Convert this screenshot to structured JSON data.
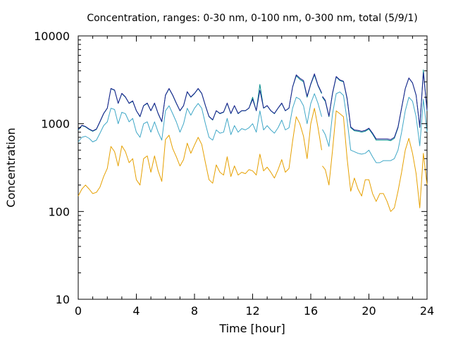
{
  "chart_data": {
    "type": "line",
    "title": "Concentration, ranges: 0-30 nm, 0-100 nm, 0-300 nm, total (5/9/1)",
    "xlabel": "Time [hour]",
    "ylabel": "Concentration",
    "xlim": [
      0,
      24
    ],
    "ylim": [
      10,
      10000
    ],
    "yscale": "log",
    "grid": false,
    "legend": "none",
    "x_ticks": [
      0,
      4,
      8,
      12,
      16,
      20,
      24
    ],
    "x_tick_labels": [
      "0",
      "4",
      "8",
      "12",
      "16",
      "20",
      "24"
    ],
    "y_ticks": [
      10,
      100,
      1000,
      10000
    ],
    "y_tick_labels": [
      "10",
      "100",
      "1000",
      "10000"
    ],
    "series": [
      {
        "color": "#e6a000",
        "x": [
          0,
          0.25,
          0.5,
          0.75,
          1,
          1.25,
          1.5,
          1.75,
          2,
          2.25,
          2.5,
          2.75,
          3,
          3.25,
          3.5,
          3.75,
          4,
          4.25,
          4.5,
          4.75,
          5,
          5.25,
          5.5,
          5.75,
          6,
          6.25,
          6.5,
          6.75,
          7,
          7.25,
          7.5,
          7.75,
          8,
          8.25,
          8.5,
          8.75,
          9,
          9.25,
          9.5,
          9.75,
          10,
          10.25,
          10.5,
          10.75,
          11,
          11.25,
          11.5,
          11.75,
          12,
          12.25,
          12.5,
          12.75,
          13,
          13.25,
          13.5,
          13.75,
          14,
          14.25,
          14.5,
          14.75,
          15,
          15.25,
          15.5,
          15.75,
          16,
          16.25,
          16.5,
          16.75,
          null,
          16.8,
          17,
          17.25,
          17.5,
          17.75,
          18,
          18.25,
          18.5,
          18.75,
          19,
          19.25,
          19.5,
          19.75,
          20,
          20.25,
          20.5,
          20.75,
          21,
          21.25,
          21.5,
          21.75,
          22,
          22.25,
          22.5,
          22.75,
          23,
          23.25,
          23.5,
          23.75,
          24
        ],
        "y": [
          150,
          180,
          200,
          180,
          160,
          165,
          190,
          250,
          310,
          550,
          480,
          330,
          560,
          480,
          360,
          400,
          230,
          200,
          400,
          430,
          280,
          430,
          290,
          220,
          660,
          740,
          520,
          420,
          330,
          390,
          600,
          460,
          570,
          700,
          580,
          360,
          230,
          210,
          340,
          280,
          260,
          420,
          250,
          330,
          260,
          280,
          270,
          300,
          290,
          260,
          450,
          290,
          320,
          280,
          240,
          300,
          390,
          280,
          310,
          630,
          1200,
          1000,
          720,
          400,
          1000,
          1500,
          900,
          500,
          null,
          330,
          300,
          200,
          500,
          1400,
          1300,
          1200,
          400,
          170,
          240,
          180,
          150,
          230,
          230,
          160,
          130,
          160,
          160,
          130,
          100,
          110,
          170,
          280,
          500,
          680,
          460,
          270,
          110,
          460,
          200
        ]
      },
      {
        "color": "#3fa7c7",
        "x": [
          0,
          0.25,
          0.5,
          0.75,
          1,
          1.25,
          1.5,
          1.75,
          2,
          2.25,
          2.5,
          2.75,
          3,
          3.25,
          3.5,
          3.75,
          4,
          4.25,
          4.5,
          4.75,
          5,
          5.25,
          5.5,
          5.75,
          6,
          6.25,
          6.5,
          6.75,
          7,
          7.25,
          7.5,
          7.75,
          8,
          8.25,
          8.5,
          8.75,
          9,
          9.25,
          9.5,
          9.75,
          10,
          10.25,
          10.5,
          10.75,
          11,
          11.25,
          11.5,
          11.75,
          12,
          12.25,
          12.5,
          12.75,
          13,
          13.25,
          13.5,
          13.75,
          14,
          14.25,
          14.5,
          14.75,
          15,
          15.25,
          15.5,
          15.75,
          16,
          16.25,
          16.5,
          16.75,
          null,
          16.8,
          17,
          17.25,
          17.5,
          17.75,
          18,
          18.25,
          18.5,
          18.75,
          19,
          19.25,
          19.5,
          19.75,
          20,
          20.25,
          20.5,
          20.75,
          21,
          21.25,
          21.5,
          21.75,
          22,
          22.25,
          22.5,
          22.75,
          23,
          23.25,
          23.5,
          23.75,
          24
        ],
        "y": [
          620,
          700,
          720,
          680,
          620,
          650,
          780,
          950,
          1050,
          1500,
          1450,
          1000,
          1350,
          1300,
          1050,
          1150,
          800,
          700,
          1000,
          1050,
          800,
          1050,
          800,
          650,
          1400,
          1600,
          1300,
          1050,
          800,
          1000,
          1500,
          1250,
          1500,
          1700,
          1500,
          1000,
          700,
          650,
          850,
          780,
          800,
          1150,
          750,
          950,
          800,
          880,
          850,
          900,
          1000,
          800,
          1400,
          850,
          950,
          850,
          780,
          900,
          1100,
          850,
          900,
          1500,
          2000,
          1900,
          1600,
          1000,
          1700,
          2200,
          1700,
          1200,
          null,
          860,
          750,
          550,
          1300,
          2200,
          2300,
          2100,
          1100,
          500,
          480,
          460,
          450,
          460,
          500,
          420,
          360,
          360,
          380,
          380,
          380,
          400,
          500,
          800,
          1400,
          2000,
          1800,
          1200,
          560,
          1900,
          800
        ]
      },
      {
        "color": "#008b8b",
        "x": [
          0,
          0.25,
          0.5,
          0.75,
          1,
          1.25,
          1.5,
          1.75,
          2,
          2.25,
          2.5,
          2.75,
          3,
          3.25,
          3.5,
          3.75,
          4,
          4.25,
          4.5,
          4.75,
          5,
          5.25,
          5.5,
          5.75,
          6,
          6.25,
          6.5,
          6.75,
          7,
          7.25,
          7.5,
          7.75,
          8,
          8.25,
          8.5,
          8.75,
          9,
          9.25,
          9.5,
          9.75,
          10,
          10.25,
          10.5,
          10.75,
          11,
          11.25,
          11.5,
          11.75,
          12,
          12.25,
          12.5,
          12.75,
          13,
          13.25,
          13.5,
          13.75,
          14,
          14.25,
          14.5,
          14.75,
          15,
          15.25,
          15.5,
          15.75,
          16,
          16.25,
          16.5,
          16.75,
          null,
          16.8,
          17,
          17.25,
          17.5,
          17.75,
          18,
          18.25,
          18.5,
          18.75,
          19,
          19.25,
          19.5,
          19.75,
          20,
          20.25,
          20.5,
          20.75,
          21,
          21.25,
          21.5,
          21.75,
          22,
          22.25,
          22.5,
          22.75,
          23,
          23.25,
          23.5,
          23.75,
          24
        ],
        "y": [
          850,
          950,
          920,
          860,
          820,
          860,
          1050,
          1300,
          1500,
          2500,
          2400,
          1700,
          2200,
          2000,
          1700,
          1800,
          1400,
          1200,
          1600,
          1700,
          1400,
          1700,
          1300,
          1050,
          2100,
          2500,
          2100,
          1700,
          1400,
          1600,
          2300,
          2000,
          2200,
          2500,
          2200,
          1600,
          1200,
          1100,
          1400,
          1300,
          1350,
          1700,
          1300,
          1600,
          1300,
          1400,
          1400,
          1500,
          2000,
          1400,
          2800,
          1500,
          1600,
          1400,
          1300,
          1500,
          1700,
          1400,
          1500,
          2600,
          3500,
          3200,
          3000,
          2000,
          2800,
          3600,
          2700,
          2200,
          null,
          2000,
          1800,
          1200,
          2200,
          3400,
          3100,
          3000,
          1900,
          900,
          830,
          820,
          800,
          820,
          870,
          760,
          650,
          650,
          650,
          650,
          640,
          680,
          900,
          1500,
          2500,
          3300,
          2900,
          2100,
          900,
          4100,
          1400
        ]
      },
      {
        "color": "#1f1f8f",
        "x": [
          0,
          0.25,
          0.5,
          0.75,
          1,
          1.25,
          1.5,
          1.75,
          2,
          2.25,
          2.5,
          2.75,
          3,
          3.25,
          3.5,
          3.75,
          4,
          4.25,
          4.5,
          4.75,
          5,
          5.25,
          5.5,
          5.75,
          6,
          6.25,
          6.5,
          6.75,
          7,
          7.25,
          7.5,
          7.75,
          8,
          8.25,
          8.5,
          8.75,
          9,
          9.25,
          9.5,
          9.75,
          10,
          10.25,
          10.5,
          10.75,
          11,
          11.25,
          11.5,
          11.75,
          12,
          12.25,
          12.5,
          12.75,
          13,
          13.25,
          13.5,
          13.75,
          14,
          14.25,
          14.5,
          14.75,
          15,
          15.25,
          15.5,
          15.75,
          16,
          16.25,
          16.5,
          16.75,
          null,
          16.8,
          17,
          17.25,
          17.5,
          17.75,
          18,
          18.25,
          18.5,
          18.75,
          19,
          19.25,
          19.5,
          19.75,
          20,
          20.25,
          20.5,
          20.75,
          21,
          21.25,
          21.5,
          21.75,
          22,
          22.25,
          22.5,
          22.75,
          23,
          23.25,
          23.5,
          23.75,
          24
        ],
        "y": [
          860,
          960,
          930,
          870,
          830,
          870,
          1060,
          1310,
          1510,
          2520,
          2420,
          1710,
          2220,
          2020,
          1710,
          1820,
          1410,
          1210,
          1610,
          1720,
          1410,
          1720,
          1310,
          1060,
          2120,
          2520,
          2120,
          1720,
          1410,
          1610,
          2320,
          2020,
          2220,
          2520,
          2220,
          1610,
          1210,
          1110,
          1410,
          1310,
          1360,
          1720,
          1310,
          1610,
          1310,
          1410,
          1410,
          1510,
          1900,
          1410,
          2400,
          1510,
          1610,
          1410,
          1310,
          1510,
          1720,
          1410,
          1510,
          2620,
          3600,
          3300,
          3100,
          2050,
          2850,
          3700,
          2750,
          2250,
          null,
          2050,
          1850,
          1220,
          2250,
          3450,
          3150,
          3050,
          1950,
          920,
          850,
          840,
          820,
          840,
          890,
          780,
          670,
          670,
          670,
          670,
          660,
          700,
          920,
          1520,
          2520,
          3320,
          2920,
          2120,
          920,
          3800,
          1420
        ]
      }
    ]
  }
}
